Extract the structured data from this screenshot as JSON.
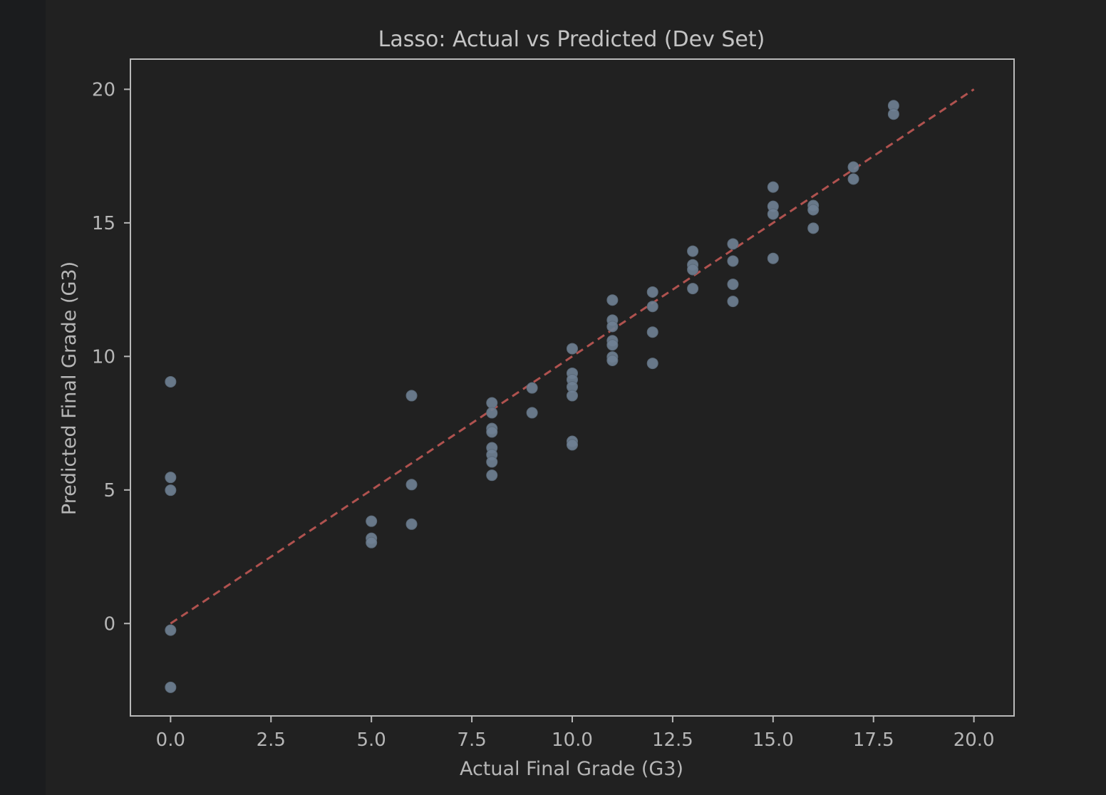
{
  "chart_data": {
    "type": "scatter",
    "title": "Lasso: Actual vs Predicted (Dev Set)",
    "xlabel": "Actual Final Grade (G3)",
    "ylabel": "Predicted Final Grade (G3)",
    "xlim": [
      -1.0,
      21.0
    ],
    "ylim": [
      -3.46,
      21.13
    ],
    "xticks": [
      0.0,
      2.5,
      5.0,
      7.5,
      10.0,
      12.5,
      15.0,
      17.5,
      20.0
    ],
    "xtick_labels": [
      "0.0",
      "2.5",
      "5.0",
      "7.5",
      "10.0",
      "12.5",
      "15.0",
      "17.5",
      "20.0"
    ],
    "yticks": [
      0,
      5,
      10,
      15,
      20
    ],
    "ytick_labels": [
      "0",
      "5",
      "10",
      "15",
      "20"
    ],
    "grid": false,
    "legend": "none",
    "reference_line": {
      "x": [
        0,
        20
      ],
      "y": [
        0,
        20
      ],
      "style": "dashed",
      "color": "#b0524f"
    },
    "point_color": "#6f8092",
    "points": [
      {
        "x": 0,
        "y": 9.05
      },
      {
        "x": 0,
        "y": 5.47
      },
      {
        "x": 0,
        "y": 4.99
      },
      {
        "x": 0,
        "y": -0.25
      },
      {
        "x": 0,
        "y": -2.39
      },
      {
        "x": 5,
        "y": 3.83
      },
      {
        "x": 5,
        "y": 3.19
      },
      {
        "x": 5,
        "y": 3.03
      },
      {
        "x": 6,
        "y": 8.53
      },
      {
        "x": 6,
        "y": 5.2
      },
      {
        "x": 6,
        "y": 3.72
      },
      {
        "x": 8,
        "y": 8.26
      },
      {
        "x": 8,
        "y": 7.89
      },
      {
        "x": 8,
        "y": 7.3
      },
      {
        "x": 8,
        "y": 7.17
      },
      {
        "x": 8,
        "y": 6.58
      },
      {
        "x": 8,
        "y": 6.32
      },
      {
        "x": 8,
        "y": 6.05
      },
      {
        "x": 8,
        "y": 5.55
      },
      {
        "x": 9,
        "y": 8.82
      },
      {
        "x": 9,
        "y": 7.89
      },
      {
        "x": 10,
        "y": 10.29
      },
      {
        "x": 10,
        "y": 9.37
      },
      {
        "x": 10,
        "y": 9.13
      },
      {
        "x": 10,
        "y": 8.86
      },
      {
        "x": 10,
        "y": 8.53
      },
      {
        "x": 10,
        "y": 6.82
      },
      {
        "x": 10,
        "y": 6.69
      },
      {
        "x": 11,
        "y": 12.11
      },
      {
        "x": 11,
        "y": 11.36
      },
      {
        "x": 11,
        "y": 11.12
      },
      {
        "x": 11,
        "y": 10.59
      },
      {
        "x": 11,
        "y": 10.43
      },
      {
        "x": 11,
        "y": 9.98
      },
      {
        "x": 11,
        "y": 9.85
      },
      {
        "x": 12,
        "y": 12.41
      },
      {
        "x": 12,
        "y": 11.87
      },
      {
        "x": 12,
        "y": 10.91
      },
      {
        "x": 12,
        "y": 9.74
      },
      {
        "x": 13,
        "y": 13.94
      },
      {
        "x": 13,
        "y": 13.43
      },
      {
        "x": 13,
        "y": 13.25
      },
      {
        "x": 13,
        "y": 12.54
      },
      {
        "x": 14,
        "y": 14.21
      },
      {
        "x": 14,
        "y": 13.57
      },
      {
        "x": 14,
        "y": 12.7
      },
      {
        "x": 14,
        "y": 12.06
      },
      {
        "x": 15,
        "y": 16.34
      },
      {
        "x": 15,
        "y": 15.62
      },
      {
        "x": 15,
        "y": 15.33
      },
      {
        "x": 15,
        "y": 13.67
      },
      {
        "x": 16,
        "y": 15.65
      },
      {
        "x": 16,
        "y": 15.49
      },
      {
        "x": 16,
        "y": 14.8
      },
      {
        "x": 17,
        "y": 17.09
      },
      {
        "x": 17,
        "y": 16.64
      },
      {
        "x": 18,
        "y": 19.39
      },
      {
        "x": 18,
        "y": 19.07
      }
    ]
  }
}
